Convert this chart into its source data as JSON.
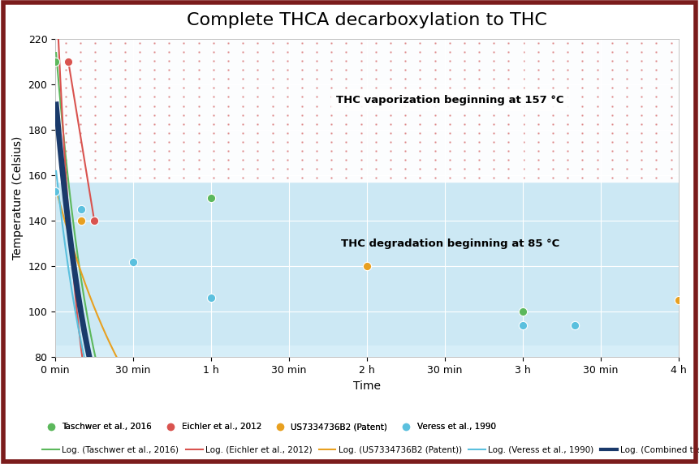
{
  "title": "Complete THCA decarboxylation to THC",
  "xlabel": "Time",
  "ylabel": "Temperature (Celsius)",
  "ylim": [
    80,
    220
  ],
  "xlim": [
    0,
    240
  ],
  "background_outer": "#ffffff",
  "background_upper": "#ffffff",
  "background_lower": "#d6eef8",
  "background_plot": "#cce8f4",
  "vaporization_line_y": 157,
  "degradation_line_y": 85,
  "annotation_vaporization": "THC vaporization beginning at 157 °C",
  "annotation_degradation": "THC degradation beginning at 85 °C",
  "xtick_positions": [
    0,
    30,
    60,
    90,
    120,
    150,
    180,
    210,
    240
  ],
  "xtick_labels": [
    "0 min",
    "30 min",
    "1 h",
    "30 min",
    "2 h",
    "30 min",
    "3 h",
    "30 min",
    "4 h"
  ],
  "ytick_positions": [
    80,
    100,
    120,
    140,
    160,
    180,
    200,
    220
  ],
  "series": {
    "taschwer": {
      "points_x": [
        0,
        60,
        180
      ],
      "points_y": [
        210,
        150,
        100
      ],
      "color": "#5cb85c",
      "label": "Taschwer et al., 2016",
      "log_label": "Log. (Taschwer et al., 2016)",
      "log_a": 218.0,
      "log_b": -0.065
    },
    "eichler": {
      "points_x": [
        5,
        15
      ],
      "points_y": [
        210,
        140
      ],
      "color": "#d9534f",
      "label": "Eichler et al., 2012",
      "log_label": "Log. (Eichler et al., 2012)",
      "log_a": 250.0,
      "log_b": -0.11
    },
    "patent": {
      "points_x": [
        10,
        120,
        240
      ],
      "points_y": [
        140,
        120,
        105
      ],
      "color": "#e8a020",
      "label": "US7334736B2 (Patent)",
      "log_label": "Log. (US7334736B2 (Patent))",
      "log_a": 155.0,
      "log_b": -0.028
    },
    "veress": {
      "points_x": [
        0,
        10,
        30,
        60,
        180,
        200
      ],
      "points_y": [
        153,
        145,
        122,
        106,
        94,
        94
      ],
      "color": "#5bc0de",
      "label": "Veress et al., 1990",
      "log_label": "Log. (Veress et al., 1990)",
      "log_a": 165.0,
      "log_b": -0.065
    }
  },
  "combined_log_a": 195.0,
  "combined_log_b": -0.068,
  "combined_color": "#1a3a6b",
  "combined_label": "Log. (Combined trendline)",
  "border_color": "#7b1c1c",
  "dot_grid_color": "#cc4444",
  "dot_grid_alpha": 0.4
}
